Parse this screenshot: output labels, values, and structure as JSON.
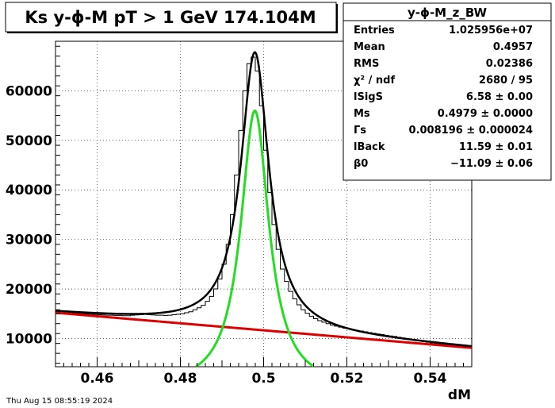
{
  "title": "Ks y-ϕ-M pT > 1 GeV  174.104M",
  "timestamp": "Thu Aug 15 08:55:19 2024",
  "stats_box": {
    "name": "y-ϕ-M_z_BW",
    "rows": [
      {
        "label": "Entries",
        "value": "1.025956e+07"
      },
      {
        "label": "Mean",
        "value": "0.4957"
      },
      {
        "label": "RMS",
        "value": "0.02386"
      },
      {
        "label": "χ² / ndf",
        "value": "2680 / 95"
      },
      {
        "label": "lSigS",
        "value": "6.58 ± 0.00"
      },
      {
        "label": "Ms",
        "value": "0.4979 ± 0.0000"
      },
      {
        "label": "Γs",
        "value": "0.008196 ± 0.000024"
      },
      {
        "label": "lBack",
        "value": "11.59 ± 0.01"
      },
      {
        "label": "β0",
        "value": "−11.09 ± 0.06"
      }
    ]
  },
  "colors": {
    "histogram": "#000000",
    "total_fit": "#000000",
    "signal": "#22dd22",
    "background": "#dd0000"
  },
  "chart_data": {
    "type": "line",
    "xlabel": "dM",
    "ylabel": "",
    "xlim": [
      0.45,
      0.55
    ],
    "ylim": [
      4300,
      70000
    ],
    "x_ticks": [
      0.46,
      0.48,
      0.5,
      0.52,
      0.54
    ],
    "x_tick_labels": [
      "0.46",
      "0.48",
      "0.5",
      "0.52",
      "0.54"
    ],
    "y_ticks": [
      10000,
      20000,
      30000,
      40000,
      50000,
      60000
    ],
    "y_tick_labels": [
      "10000",
      "20000",
      "30000",
      "40000",
      "50000",
      "60000"
    ],
    "grid": true,
    "fit": {
      "mass": 0.4979,
      "width": 0.008196,
      "signal_amp": 56000,
      "background_at_045": 15200,
      "background_at_055": 8100
    },
    "series": [
      {
        "name": "",
        "style": "histogram",
        "x": [
          0.45,
          0.451,
          0.452,
          0.453,
          0.454,
          0.455,
          0.456,
          0.457,
          0.458,
          0.459,
          0.46,
          0.461,
          0.462,
          0.463,
          0.464,
          0.465,
          0.466,
          0.467,
          0.468,
          0.469,
          0.47,
          0.471,
          0.472,
          0.473,
          0.474,
          0.475,
          0.476,
          0.477,
          0.478,
          0.479,
          0.48,
          0.481,
          0.482,
          0.483,
          0.484,
          0.485,
          0.486,
          0.487,
          0.488,
          0.489,
          0.49,
          0.491,
          0.492,
          0.493,
          0.494,
          0.495,
          0.496,
          0.497,
          0.498,
          0.499,
          0.5,
          0.501,
          0.502,
          0.503,
          0.504,
          0.505,
          0.506,
          0.507,
          0.508,
          0.509,
          0.51,
          0.511,
          0.512,
          0.513,
          0.514,
          0.515,
          0.516,
          0.517,
          0.518,
          0.519,
          0.52,
          0.521,
          0.522,
          0.523,
          0.524,
          0.525,
          0.526,
          0.527,
          0.528,
          0.529,
          0.53,
          0.531,
          0.532,
          0.533,
          0.534,
          0.535,
          0.536,
          0.537,
          0.538,
          0.539,
          0.54,
          0.541,
          0.542,
          0.543,
          0.544,
          0.545,
          0.546,
          0.547,
          0.548,
          0.549
        ],
        "values": [
          15800,
          15600,
          15400,
          15300,
          15200,
          15100,
          15000,
          14950,
          14900,
          14850,
          14800,
          14750,
          14700,
          14700,
          14650,
          14650,
          14600,
          14600,
          14700,
          14750,
          14800,
          14850,
          14800,
          14750,
          14700,
          14700,
          14650,
          14700,
          14800,
          14900,
          15000,
          15200,
          15400,
          15800,
          16200,
          16700,
          17500,
          18500,
          20000,
          22000,
          25000,
          29000,
          35000,
          43000,
          52000,
          60000,
          65500,
          66800,
          64000,
          57000,
          48000,
          39500,
          33000,
          28000,
          24000,
          21500,
          19500,
          18000,
          16800,
          15800,
          15100,
          14500,
          14000,
          13600,
          13300,
          13000,
          12700,
          12500,
          12300,
          12100,
          12000,
          11800,
          11600,
          11500,
          11350,
          11200,
          11050,
          10900,
          10800,
          10650,
          10500,
          10400,
          10250,
          10100,
          9950,
          9800,
          9650,
          9550,
          9400,
          9250,
          9100,
          9000,
          8900,
          8800,
          8700,
          8600,
          8500,
          8400,
          8300,
          8200
        ]
      },
      {
        "name": "",
        "style": "fit-total"
      },
      {
        "name": "",
        "style": "fit-signal"
      },
      {
        "name": "",
        "style": "fit-background"
      }
    ]
  }
}
